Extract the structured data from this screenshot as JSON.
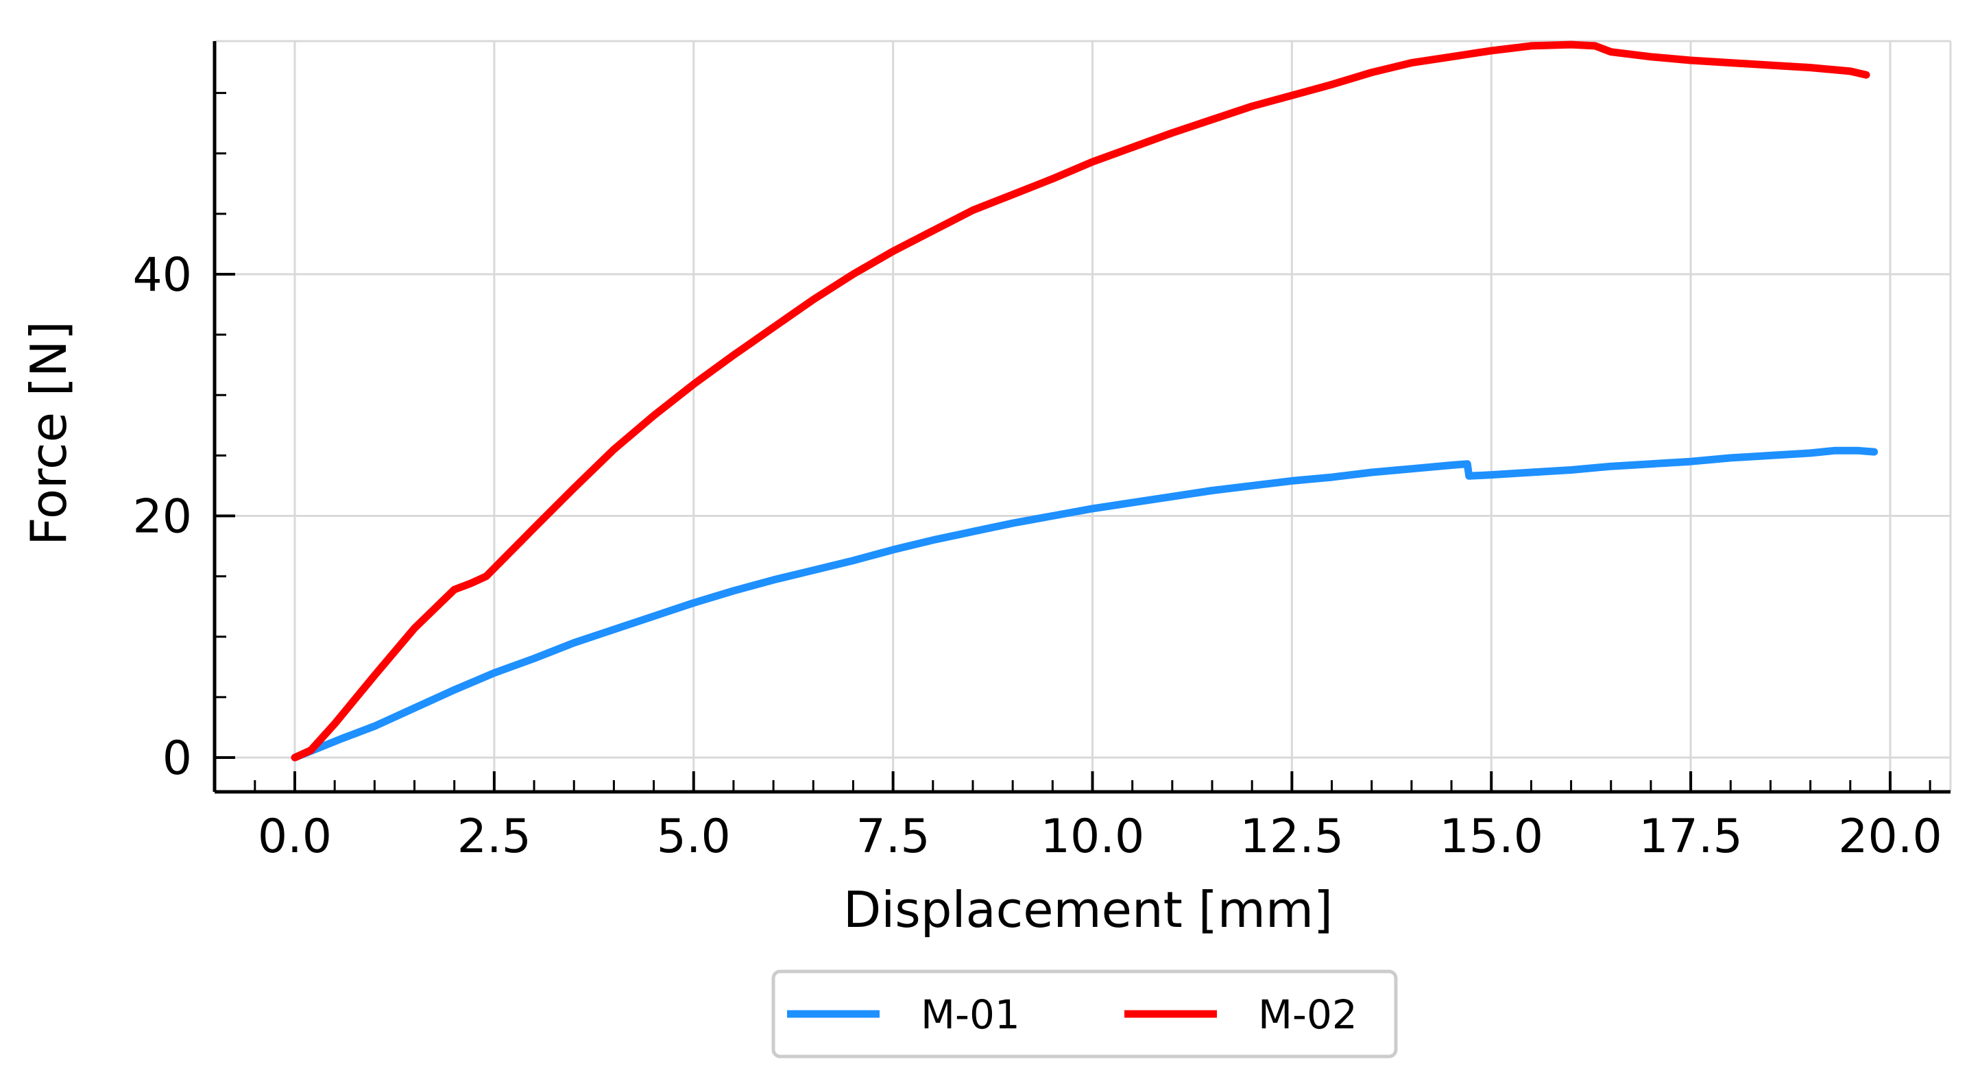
{
  "chart_data": {
    "type": "line",
    "title": "",
    "xlabel": "Displacement [mm]",
    "ylabel": "Force [N]",
    "xlim": [
      -1.0,
      20.75
    ],
    "ylim": [
      -2.8,
      59.5
    ],
    "x_ticks": [
      0.0,
      2.5,
      5.0,
      7.5,
      10.0,
      12.5,
      15.0,
      17.5,
      20.0
    ],
    "x_tick_labels": [
      "0.0",
      "2.5",
      "5.0",
      "7.5",
      "10.0",
      "12.5",
      "15.0",
      "17.5",
      "20.0"
    ],
    "y_ticks": [
      0,
      20,
      40
    ],
    "y_tick_labels": [
      "0",
      "20",
      "40"
    ],
    "grid": true,
    "legend": {
      "placement": "bottom-center, below axes",
      "columns": 2
    },
    "series": [
      {
        "name": "M-01",
        "color": "#1e90ff",
        "x": [
          0,
          0.3,
          0.6,
          1.0,
          1.5,
          2.0,
          2.5,
          3.0,
          3.5,
          4.0,
          4.5,
          5.0,
          5.5,
          6.0,
          6.5,
          7.0,
          7.5,
          8.0,
          8.5,
          9.0,
          9.5,
          10.0,
          10.5,
          11.0,
          11.5,
          12.0,
          12.5,
          13.0,
          13.5,
          14.0,
          14.5,
          14.7,
          14.72,
          15.0,
          15.5,
          16.0,
          16.5,
          17.0,
          17.5,
          18.0,
          18.5,
          19.0,
          19.3,
          19.6,
          19.8
        ],
        "y": [
          0,
          0.8,
          1.6,
          2.6,
          4.1,
          5.6,
          7.0,
          8.2,
          9.5,
          10.6,
          11.7,
          12.8,
          13.8,
          14.7,
          15.5,
          16.3,
          17.2,
          18.0,
          18.7,
          19.4,
          20.0,
          20.6,
          21.1,
          21.6,
          22.1,
          22.5,
          22.9,
          23.2,
          23.6,
          23.9,
          24.2,
          24.3,
          23.3,
          23.4,
          23.6,
          23.8,
          24.1,
          24.3,
          24.5,
          24.8,
          25.0,
          25.2,
          25.4,
          25.4,
          25.3
        ]
      },
      {
        "name": "M-02",
        "color": "#ff0000",
        "x": [
          0,
          0.2,
          0.5,
          1.0,
          1.5,
          2.0,
          2.2,
          2.4,
          3.0,
          3.5,
          4.0,
          4.5,
          5.0,
          5.5,
          6.0,
          6.5,
          7.0,
          7.5,
          8.0,
          8.5,
          9.0,
          9.5,
          10.0,
          10.5,
          11.0,
          11.5,
          12.0,
          12.5,
          13.0,
          13.5,
          14.0,
          14.5,
          15.0,
          15.5,
          16.0,
          16.3,
          16.5,
          17.0,
          17.5,
          18.0,
          18.5,
          19.0,
          19.5,
          19.7
        ],
        "y": [
          0,
          0.6,
          2.8,
          6.8,
          10.7,
          13.9,
          14.4,
          15.0,
          19.0,
          22.3,
          25.5,
          28.3,
          30.9,
          33.3,
          35.6,
          37.9,
          40.0,
          41.9,
          43.6,
          45.3,
          46.6,
          47.9,
          49.3,
          50.5,
          51.7,
          52.8,
          53.9,
          54.8,
          55.7,
          56.7,
          57.5,
          58.0,
          58.5,
          58.9,
          59.0,
          58.9,
          58.4,
          58.0,
          57.7,
          57.5,
          57.3,
          57.1,
          56.8,
          56.5
        ]
      }
    ]
  }
}
